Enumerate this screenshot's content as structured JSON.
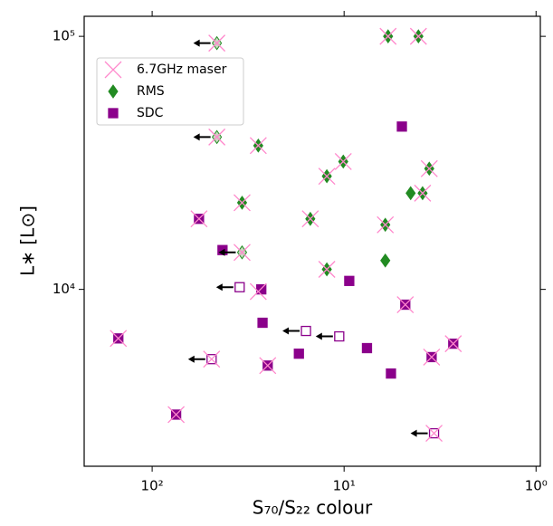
{
  "chart_data": {
    "type": "scatter",
    "xlabel": "S₇₀/S₂₂ colour",
    "ylabel": "L∗ [L⊙]",
    "xscale": "log",
    "yscale": "log",
    "xlim": [
      226,
      0.95
    ],
    "ylim": [
      2000,
      120000
    ],
    "xticks": [
      {
        "value": 100,
        "label": "10²"
      },
      {
        "value": 10,
        "label": "10¹"
      },
      {
        "value": 1,
        "label": "10⁰"
      }
    ],
    "yticks": [
      {
        "value": 10000,
        "label": "10⁴"
      },
      {
        "value": 100000,
        "label": "10⁵"
      }
    ],
    "legend": "upper left",
    "series": [
      {
        "name": "6.7GHz maser",
        "color": "#ff88cc",
        "marker": "x",
        "x": [
          46,
          46,
          5.9,
          4.1,
          28,
          10.1,
          12.3,
          3.6,
          34,
          3.9,
          15,
          6.1,
          57,
          34,
          12.3,
          28,
          4.8,
          150,
          2.7,
          49,
          3.5,
          25,
          75,
          3.4
        ],
        "y": [
          94000,
          40000,
          100000,
          100000,
          37000,
          32000,
          28000,
          30000,
          22000,
          24000,
          19000,
          18000,
          19000,
          14000,
          12000,
          9800,
          8700,
          6400,
          6100,
          5300,
          5400,
          5000,
          3200,
          2700
        ]
      },
      {
        "name": "RMS",
        "color": "#228b22",
        "marker": "diamond",
        "x": [
          46,
          46,
          5.9,
          4.1,
          28,
          10.1,
          12.3,
          3.6,
          34,
          3.9,
          4.5,
          15,
          6.1,
          34,
          6.1,
          12.3
        ],
        "y": [
          94000,
          40000,
          100000,
          100000,
          37000,
          32000,
          28000,
          30000,
          22000,
          24000,
          24000,
          19000,
          18000,
          14000,
          13000,
          12000
        ],
        "x_upper_limit": [
          true,
          true,
          false,
          false,
          false,
          false,
          false,
          false,
          false,
          false,
          false,
          false,
          false,
          true,
          false,
          false
        ]
      },
      {
        "name": "SDC",
        "color": "#8b008b",
        "marker": "square",
        "x": [
          5.0,
          57,
          43,
          35,
          27,
          9.4,
          4.8,
          26.6,
          15.8,
          10.6,
          150,
          2.7,
          7.6,
          17.2,
          49,
          3.5,
          25,
          5.7,
          75,
          3.4
        ],
        "y": [
          44000,
          19000,
          14300,
          10200,
          10000,
          10800,
          8700,
          7380,
          6850,
          6520,
          6400,
          6100,
          5860,
          5570,
          5300,
          5400,
          5000,
          4650,
          3200,
          2700
        ],
        "x_upper_limit": [
          false,
          false,
          false,
          true,
          false,
          false,
          false,
          false,
          true,
          true,
          false,
          false,
          false,
          false,
          true,
          false,
          false,
          false,
          false,
          true
        ]
      }
    ]
  }
}
